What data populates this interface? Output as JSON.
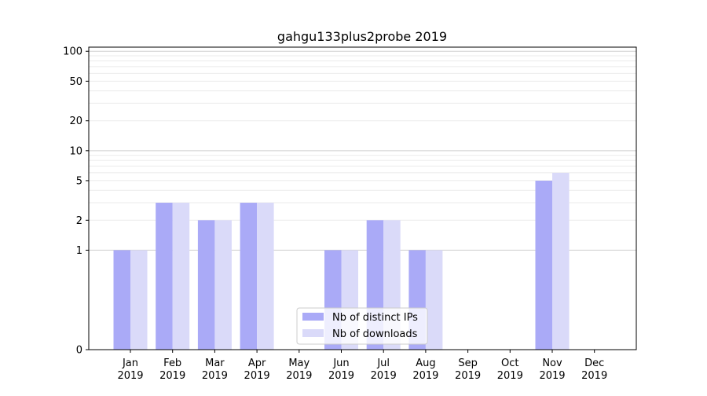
{
  "chart_data": {
    "type": "bar",
    "title": "gahgu133plus2probe 2019",
    "xlabel": "",
    "ylabel": "",
    "yscale": "symlog",
    "ylim": [
      0,
      110
    ],
    "yticks": [
      0,
      1,
      2,
      5,
      10,
      20,
      50,
      100
    ],
    "grid": true,
    "legend_position": "bottom-center",
    "categories": [
      [
        "Jan",
        "2019"
      ],
      [
        "Feb",
        "2019"
      ],
      [
        "Mar",
        "2019"
      ],
      [
        "Apr",
        "2019"
      ],
      [
        "May",
        "2019"
      ],
      [
        "Jun",
        "2019"
      ],
      [
        "Jul",
        "2019"
      ],
      [
        "Aug",
        "2019"
      ],
      [
        "Sep",
        "2019"
      ],
      [
        "Oct",
        "2019"
      ],
      [
        "Nov",
        "2019"
      ],
      [
        "Dec",
        "2019"
      ]
    ],
    "series": [
      {
        "name": "Nb of distinct IPs",
        "color": "#aaaaf7",
        "values": [
          1,
          3,
          2,
          3,
          0,
          1,
          2,
          1,
          0,
          0,
          5,
          0
        ]
      },
      {
        "name": "Nb of downloads",
        "color": "#dadaf9",
        "values": [
          1,
          3,
          2,
          3,
          0,
          1,
          2,
          1,
          0,
          0,
          6,
          0
        ]
      }
    ]
  }
}
